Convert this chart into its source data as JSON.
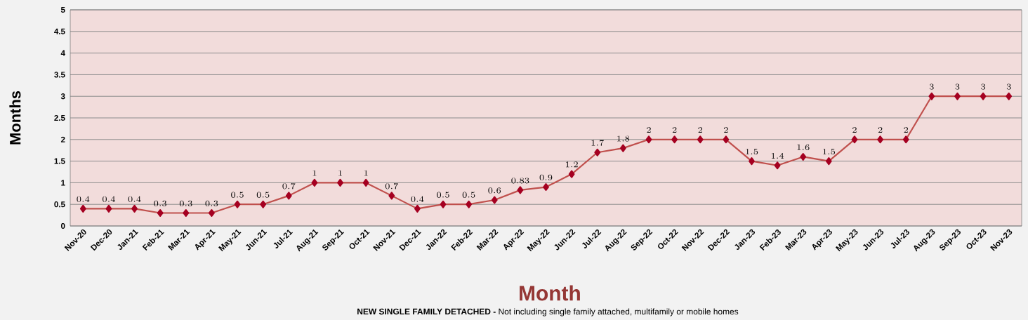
{
  "chart_data": {
    "type": "line",
    "xlabel": "Month",
    "ylabel": "Months",
    "annotations": [
      "**NEW SINGLE FAMILY DETACHED -** Not including single family attached, multifamily or mobile homes"
    ],
    "categories": [
      "Nov-20",
      "Dec-20",
      "Jan-21",
      "Feb-21",
      "Mar-21",
      "Apr-21",
      "May-21",
      "Jun-21",
      "Jul-21",
      "Aug-21",
      "Sep-21",
      "Oct-21",
      "Nov-21",
      "Dec-21",
      "Jan-22",
      "Feb-22",
      "Mar-22",
      "Apr-22",
      "May-22",
      "Jun-22",
      "Jul-22",
      "Aug-22",
      "Sep-22",
      "Oct-22",
      "Nov-22",
      "Dec-22",
      "Jan-23",
      "Feb-23",
      "Mar-23",
      "Apr-23",
      "May-23",
      "Jun-23",
      "Jul-23",
      "Aug-23",
      "Sep-23",
      "Oct-23",
      "Nov-23"
    ],
    "series": [
      {
        "color": "#c0504d",
        "values": [
          0.4,
          0.4,
          0.4,
          0.3,
          0.3,
          0.3,
          0.5,
          0.5,
          0.7,
          1,
          1,
          1,
          0.7,
          0.4,
          0.5,
          0.5,
          0.6,
          0.83,
          0.9,
          1.2,
          1.7,
          1.8,
          2,
          2,
          2,
          2,
          1.5,
          1.4,
          1.6,
          1.5,
          2,
          2,
          2,
          3,
          3,
          3,
          3
        ]
      }
    ],
    "ylim": [
      0,
      5
    ],
    "yticks": [
      0,
      0.5,
      1,
      1.5,
      2,
      2.5,
      3,
      3.5,
      4,
      4.5,
      5
    ],
    "grid": "y",
    "marker": "diamond",
    "line_style": "solid",
    "data_labels": true
  }
}
